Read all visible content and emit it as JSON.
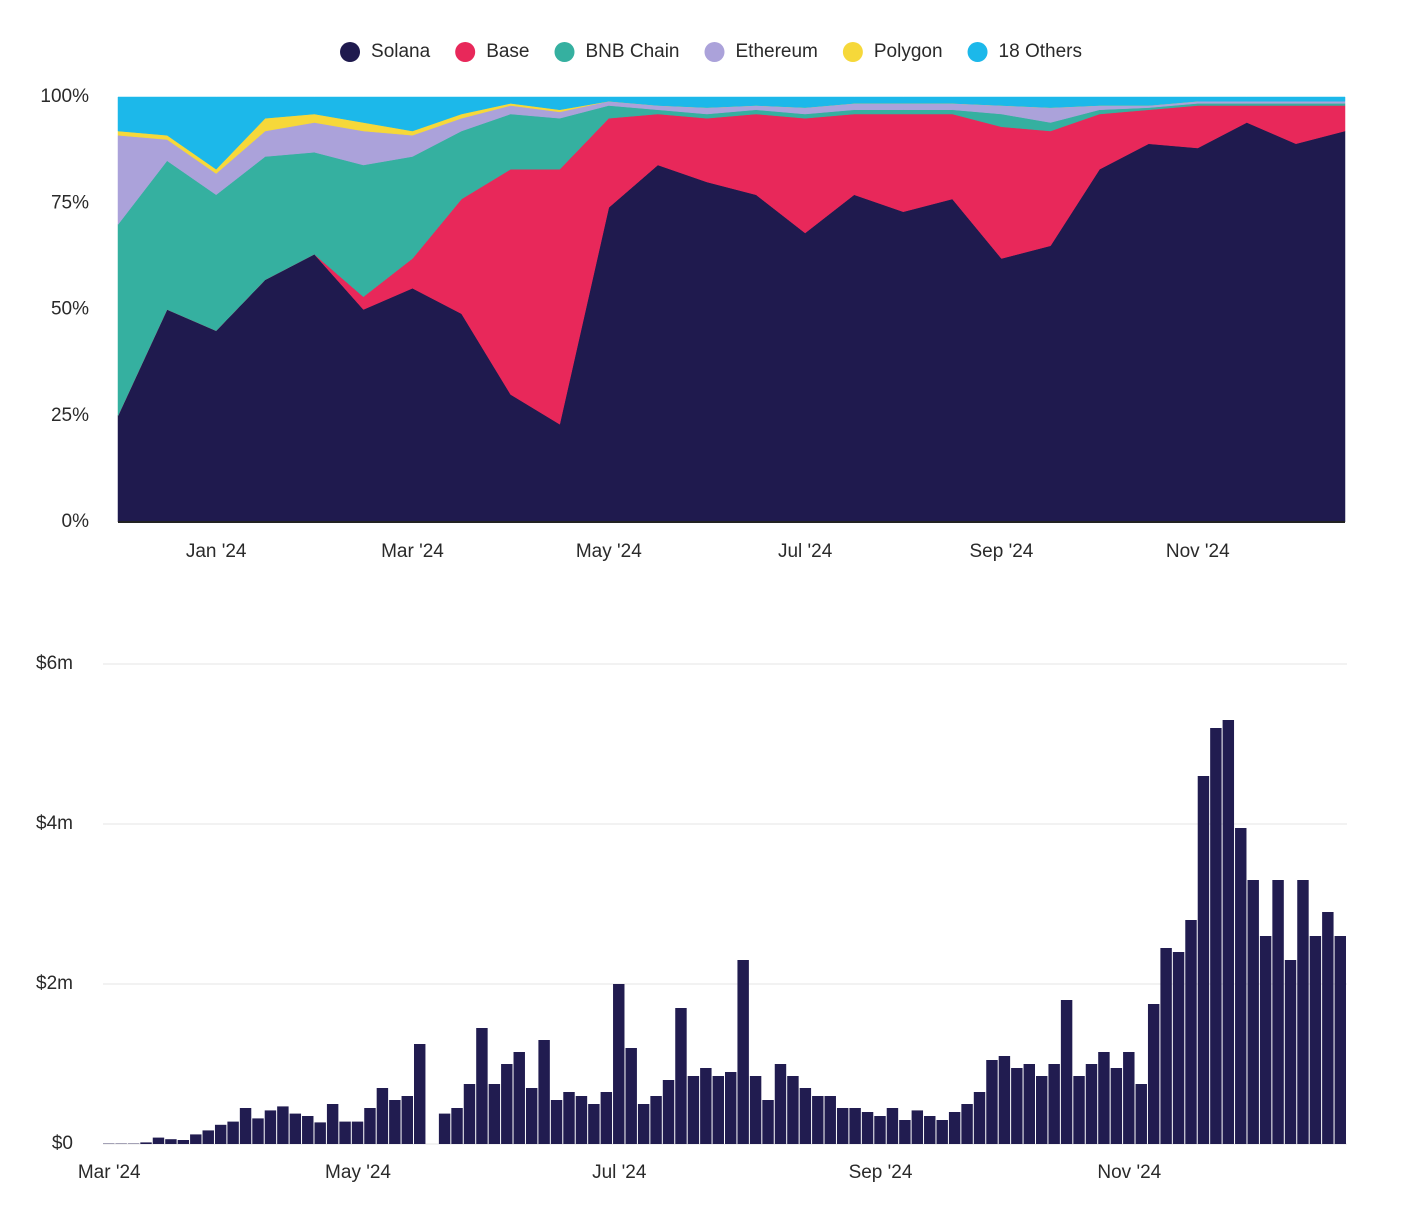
{
  "chart_data": [
    {
      "type": "area",
      "stacked": true,
      "legend": "top",
      "categories": [
        null,
        null,
        "Jan '24",
        null,
        null,
        null,
        "Mar '24",
        null,
        null,
        null,
        "May '24",
        null,
        null,
        null,
        "Jul '24",
        null,
        null,
        null,
        "Sep '24",
        null,
        null,
        null,
        "Nov '24",
        null,
        null,
        null
      ],
      "ylim": [
        0,
        100
      ],
      "yticks": [
        {
          "value": 0,
          "label": "0%"
        },
        {
          "value": 25,
          "label": "25%"
        },
        {
          "value": 50,
          "label": "50%"
        },
        {
          "value": 75,
          "label": "75%"
        },
        {
          "value": 100,
          "label": "100%"
        }
      ],
      "series": [
        {
          "name": "Solana",
          "color": "#1f1a4e",
          "values": [
            25,
            50,
            45,
            57,
            63,
            50,
            55,
            49,
            30,
            23,
            74,
            84,
            80,
            77,
            68,
            77,
            73,
            76,
            62,
            65,
            83,
            89,
            88,
            94,
            89,
            92
          ]
        },
        {
          "name": "Base",
          "color": "#e8285a",
          "values": [
            0,
            0,
            0,
            0,
            0,
            3,
            7,
            27,
            53,
            60,
            21,
            12,
            15,
            19,
            27,
            19,
            23,
            20,
            31,
            27,
            13,
            8,
            10,
            4,
            9,
            6
          ]
        },
        {
          "name": "BNB Chain",
          "color": "#35b0a0",
          "values": [
            45,
            35,
            32,
            29,
            24,
            31,
            24,
            16,
            13,
            12,
            3,
            1,
            1,
            1,
            1,
            1,
            1,
            1,
            3,
            2,
            1,
            0.5,
            0.5,
            0.5,
            0.5,
            0.5
          ]
        },
        {
          "name": "Ethereum",
          "color": "#aba2da",
          "values": [
            21,
            5,
            5,
            6,
            7,
            8,
            5,
            3,
            2,
            1.5,
            1,
            1,
            1.5,
            1,
            1.5,
            1.5,
            1.5,
            1.5,
            2,
            3.5,
            1,
            0.5,
            0.5,
            0.5,
            0.5,
            0.5
          ]
        },
        {
          "name": "Polygon",
          "color": "#f6d83a",
          "values": [
            1,
            1,
            1,
            3,
            2,
            2,
            1,
            1,
            0.5,
            0.5,
            0,
            0,
            0,
            0,
            0,
            0,
            0,
            0,
            0,
            0,
            0,
            0,
            0,
            0,
            0,
            0
          ]
        },
        {
          "name": "18 Others",
          "color": "#1cb8ea",
          "values": [
            8,
            9,
            17,
            5,
            4,
            6,
            8,
            4,
            1.5,
            3,
            1,
            2,
            2.5,
            2,
            2.5,
            1.5,
            1.5,
            1.5,
            2,
            2.5,
            2,
            2,
            1,
            1,
            1,
            1
          ]
        }
      ]
    },
    {
      "type": "bar",
      "color": "#211c50",
      "grid": true,
      "categories": [
        "Mar '24",
        null,
        null,
        null,
        null,
        null,
        null,
        null,
        null,
        null,
        null,
        null,
        null,
        null,
        null,
        null,
        null,
        null,
        null,
        null,
        "May '24",
        null,
        null,
        null,
        null,
        null,
        null,
        null,
        null,
        null,
        null,
        null,
        null,
        null,
        null,
        null,
        null,
        null,
        null,
        null,
        null,
        "Jul '24",
        null,
        null,
        null,
        null,
        null,
        null,
        null,
        null,
        null,
        null,
        null,
        null,
        null,
        null,
        null,
        null,
        null,
        null,
        null,
        null,
        "Sep '24",
        null,
        null,
        null,
        null,
        null,
        null,
        null,
        null,
        null,
        null,
        null,
        null,
        null,
        null,
        null,
        null,
        null,
        null,
        null,
        "Nov '24",
        null,
        null,
        null,
        null,
        null,
        null,
        null,
        null,
        null,
        null,
        null,
        null,
        null,
        null,
        null,
        null,
        null
      ],
      "ylim": [
        0,
        6000000
      ],
      "yticks": [
        {
          "value": 0,
          "label": "$0"
        },
        {
          "value": 2000000,
          "label": "$2m"
        },
        {
          "value": 4000000,
          "label": "$4m"
        },
        {
          "value": 6000000,
          "label": "$6m"
        }
      ],
      "values": [
        5000,
        5000,
        5000,
        20000,
        80000,
        60000,
        50000,
        120000,
        170000,
        240000,
        280000,
        450000,
        320000,
        420000,
        470000,
        380000,
        350000,
        270000,
        500000,
        280000,
        280000,
        450000,
        700000,
        550000,
        600000,
        1250000,
        0,
        380000,
        450000,
        750000,
        1450000,
        750000,
        1000000,
        1150000,
        700000,
        1300000,
        550000,
        650000,
        600000,
        500000,
        650000,
        2000000,
        1200000,
        500000,
        600000,
        800000,
        1700000,
        850000,
        950000,
        850000,
        900000,
        2300000,
        850000,
        550000,
        1000000,
        850000,
        700000,
        600000,
        600000,
        450000,
        450000,
        400000,
        350000,
        450000,
        300000,
        420000,
        350000,
        300000,
        400000,
        500000,
        650000,
        1050000,
        1100000,
        950000,
        1000000,
        850000,
        1000000,
        1800000,
        850000,
        1000000,
        1150000,
        950000,
        1150000,
        750000,
        1750000,
        2450000,
        2400000,
        2800000,
        4600000,
        5200000,
        5300000,
        3950000,
        3300000,
        2600000,
        3300000,
        2300000,
        3300000,
        2600000,
        2900000,
        2600000
      ]
    }
  ]
}
